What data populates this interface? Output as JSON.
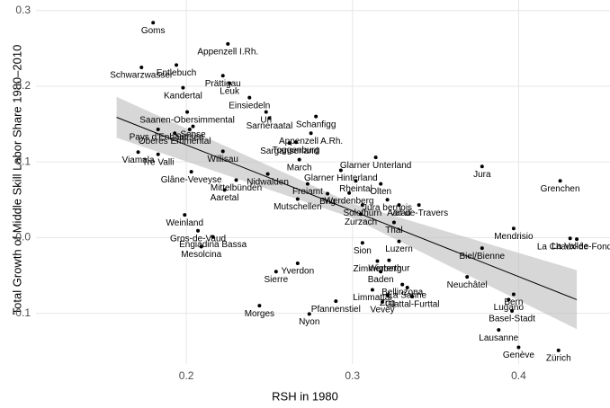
{
  "chart_data": {
    "type": "scatter",
    "x_label": "RSH in 1980",
    "y_label": "Total Growth of Middle Skill Labor Share 1980–2010",
    "xlim": [
      0.1095,
      0.455
    ],
    "ylim": [
      -0.167,
      0.314
    ],
    "xticks": [
      0.2,
      0.3,
      0.4
    ],
    "yticks": [
      -0.1,
      {
        "value": 0,
        "label": "0.0"
      },
      0.1,
      0.2,
      0.3
    ],
    "grid": true,
    "color": "#000000",
    "labels": [
      "Goms",
      "Appenzell I.Rh.",
      "Schwarzwasser",
      "Entlebuch",
      "Prättigau",
      "Kandertal",
      "Leuk",
      "Einsiedeln",
      "Uri",
      "Sarneraatal",
      "Schanfigg",
      "Saanen-Obersimmental",
      "Sense",
      "Pays d'Enhaut",
      "Sursee",
      "Oberes Emmental",
      "Appenzell A.Rh.",
      "Sarganserland",
      "Toggenburg",
      "Viamala",
      "Tre Valli",
      "Willisau",
      "March",
      "Glarner Unterland",
      "Jura",
      "Grenchen",
      "Glâne-Veveyse",
      "Nidwalden",
      "Mittelbünden",
      "Glarner Hinterland",
      "Freiamt",
      "Rheintal",
      "Olten",
      "Aaretal",
      "Brig",
      "Werdenberg",
      "Jura bernois",
      "Solothurn",
      "Aarau",
      "Val-de-Travers",
      "Mutschellen",
      "Zurzach",
      "Thal",
      "Weinland",
      "Gros-de-Vaud",
      "Engiadina Bassa",
      "Mesolcina",
      "Mendrisio",
      "La Chaux-de-Fonds",
      "La Vallée",
      "Biel/Bienne",
      "Sierre",
      "Yverdon",
      "Zimmerberg",
      "Baden",
      "Bellinzona",
      "Neuchâtel",
      "Limmattal",
      "La Sarine",
      "Glattal-Furttal",
      "Zug",
      "Vevey",
      "Pfannenstiel",
      "Morges",
      "Nyon",
      "Bern",
      "Lugano",
      "Basel-Stadt",
      "Lausanne",
      "Genève",
      "Zürich",
      "Sion",
      "Luzern",
      "Winterthur"
    ],
    "x": [
      0.18,
      0.225,
      0.173,
      0.194,
      0.222,
      0.198,
      0.226,
      0.238,
      0.248,
      0.25,
      0.278,
      0.2005,
      0.204,
      0.183,
      0.202,
      0.193,
      0.275,
      0.262,
      0.266,
      0.171,
      0.183,
      0.222,
      0.268,
      0.314,
      0.378,
      0.425,
      0.203,
      0.249,
      0.23,
      0.293,
      0.273,
      0.302,
      0.317,
      0.223,
      0.285,
      0.298,
      0.321,
      0.306,
      0.328,
      0.34,
      0.267,
      0.305,
      0.325,
      0.199,
      0.207,
      0.216,
      0.209,
      0.397,
      0.435,
      0.431,
      0.378,
      0.254,
      0.267,
      0.315,
      0.317,
      0.33,
      0.369,
      0.312,
      0.333,
      0.336,
      0.321,
      0.318,
      0.29,
      0.244,
      0.274,
      0.397,
      0.394,
      0.396,
      0.388,
      0.4,
      0.424,
      0.306,
      0.328,
      0.322
    ],
    "values": [
      0.284,
      0.256,
      0.225,
      0.228,
      0.214,
      0.198,
      0.204,
      0.185,
      0.166,
      0.158,
      0.16,
      0.166,
      0.147,
      0.143,
      0.143,
      0.138,
      0.138,
      0.125,
      0.126,
      0.113,
      0.11,
      0.114,
      0.103,
      0.106,
      0.094,
      0.075,
      0.087,
      0.084,
      0.076,
      0.089,
      0.071,
      0.075,
      0.071,
      0.063,
      0.058,
      0.059,
      0.05,
      0.043,
      0.043,
      0.043,
      0.051,
      0.031,
      0.02,
      0.03,
      0.009,
      0.001,
      -0.012,
      0.012,
      -0.002,
      -0.001,
      -0.014,
      -0.045,
      -0.034,
      -0.031,
      -0.045,
      -0.062,
      -0.052,
      -0.069,
      -0.066,
      -0.078,
      -0.076,
      -0.085,
      -0.084,
      -0.09,
      -0.101,
      -0.075,
      -0.082,
      -0.097,
      -0.122,
      -0.145,
      -0.149,
      -0.007,
      -0.005,
      -0.03
    ],
    "fit": {
      "x": [
        0.158,
        0.435
      ],
      "values": [
        0.159,
        -0.082
      ]
    },
    "band": {
      "x": [
        0.158,
        0.3,
        0.435
      ],
      "upper": [
        0.186,
        0.045,
        -0.043
      ],
      "lower": [
        0.132,
        0.026,
        -0.121
      ],
      "color": "#bdbdbd"
    }
  }
}
